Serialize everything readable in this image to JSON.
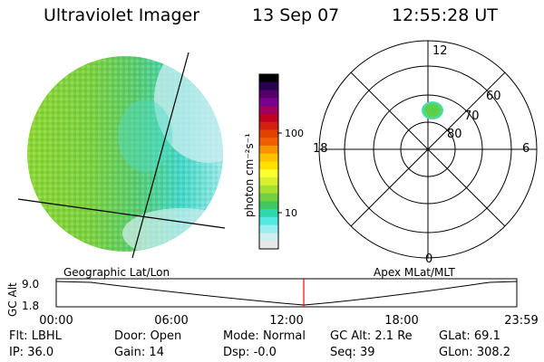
{
  "header": {
    "app_title": "Ultraviolet Imager",
    "date": "13 Sep 07",
    "time": "12:55:28 UT"
  },
  "colorbar": {
    "unit_label": "photon cm⁻²s⁻¹",
    "tick_labels": [
      "100",
      "10"
    ],
    "colors_top_to_bottom": [
      "#000000",
      "#2a0050",
      "#55006a",
      "#7a0090",
      "#a00060",
      "#c00020",
      "#d22010",
      "#e24000",
      "#f06000",
      "#f89400",
      "#ffc000",
      "#ffe000",
      "#ffff30",
      "#d8f030",
      "#a8e030",
      "#70d040",
      "#40c860",
      "#30d8b0",
      "#50e8e0",
      "#9aeef0",
      "#d0eef0",
      "#e8e8e8"
    ]
  },
  "polar_plot": {
    "clock_labels": [
      "12",
      "18",
      "6",
      "0"
    ],
    "lat_labels": [
      "60",
      "70",
      "80"
    ],
    "colors": {
      "ring": "#000000",
      "spot_outer": "#40e0d0",
      "spot_inner": "#60d040"
    }
  },
  "timeline": {
    "left_label": "Geographic Lat/Lon",
    "right_label": "Apex MLat/MLT",
    "y_axis_title": "GC Alt",
    "y_ticks": [
      "9.0",
      "1.8"
    ],
    "x_ticks": [
      "00:00",
      "06:00",
      "12:00",
      "18:00",
      "23:59"
    ],
    "current_time_marker": "12:55",
    "marker_color": "#ff0000"
  },
  "info_panel": {
    "row1": [
      {
        "label": "Flt:",
        "value": "LBHL"
      },
      {
        "label": "Door:",
        "value": "Open"
      },
      {
        "label": "Mode:",
        "value": "Normal"
      },
      {
        "label": "GC Alt:",
        "value": "2.1 Re"
      },
      {
        "label": "GLat:",
        "value": "69.1"
      }
    ],
    "row2": [
      {
        "label": "IP:",
        "value": "36.0"
      },
      {
        "label": "Gain:",
        "value": "14"
      },
      {
        "label": "Dsp:",
        "value": "-0.0"
      },
      {
        "label": "Seq:",
        "value": "39"
      },
      {
        "label": "GLon:",
        "value": "308.2"
      }
    ]
  }
}
